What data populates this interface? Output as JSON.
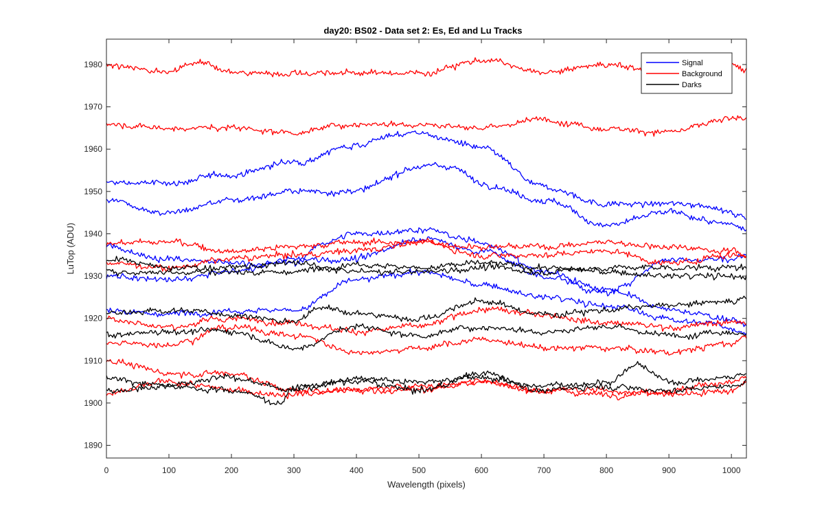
{
  "chart_data": {
    "type": "line",
    "title": "day20: BS02 - Data set 2: Es, Ed and Lu Tracks",
    "xlabel": "Wavelength (pixels)",
    "ylabel": "LuTop (ADU)",
    "xlim": [
      0,
      1024
    ],
    "ylim": [
      1887,
      1986
    ],
    "xticks": [
      0,
      100,
      200,
      300,
      400,
      500,
      600,
      700,
      800,
      900,
      1000
    ],
    "yticks": [
      1890,
      1900,
      1910,
      1920,
      1930,
      1940,
      1950,
      1960,
      1970,
      1980
    ],
    "grid": false,
    "legend": {
      "placement": "top-right",
      "entries": [
        "Signal",
        "Background",
        "Darks"
      ]
    },
    "colors": {
      "Signal": "#0000ff",
      "Background": "#ff0000",
      "Darks": "#000000"
    },
    "series": [
      {
        "name": "Signal",
        "x": [
          0,
          100,
          200,
          300,
          400,
          450,
          500,
          550,
          600,
          700,
          800,
          900,
          950,
          1024
        ],
        "y": [
          1952,
          1952,
          1954,
          1957,
          1961,
          1963,
          1964,
          1962,
          1960,
          1951,
          1947,
          1947,
          1947,
          1944
        ]
      },
      {
        "name": "Signal",
        "x": [
          0,
          100,
          200,
          300,
          400,
          500,
          550,
          600,
          700,
          800,
          900,
          1000,
          1024
        ],
        "y": [
          1948,
          1945,
          1948,
          1950,
          1950,
          1956,
          1956,
          1952,
          1948,
          1942,
          1945,
          1942,
          1941
        ]
      },
      {
        "name": "Signal",
        "x": [
          0,
          100,
          200,
          300,
          350,
          400,
          500,
          600,
          700,
          800,
          900,
          1000,
          1024
        ],
        "y": [
          1937,
          1934,
          1933,
          1933,
          1938,
          1940,
          1941,
          1938,
          1931,
          1927,
          1922,
          1920,
          1918
        ]
      },
      {
        "name": "Signal",
        "x": [
          0,
          100,
          200,
          300,
          400,
          500,
          600,
          700,
          800,
          900,
          1000,
          1024
        ],
        "y": [
          1930,
          1929,
          1931,
          1934,
          1934,
          1939,
          1936,
          1930,
          1926,
          1934,
          1934,
          1935
        ]
      },
      {
        "name": "Signal",
        "x": [
          0,
          100,
          200,
          300,
          400,
          500,
          600,
          700,
          800,
          900,
          950,
          1024
        ],
        "y": [
          1922,
          1921,
          1922,
          1922,
          1929,
          1931,
          1928,
          1925,
          1923,
          1920,
          1919,
          1917
        ]
      },
      {
        "name": "Background",
        "x": [
          0,
          100,
          150,
          200,
          300,
          400,
          500,
          600,
          700,
          800,
          900,
          1000,
          1024
        ],
        "y": [
          1980,
          1978,
          1981,
          1978,
          1978,
          1978,
          1978,
          1981,
          1978,
          1980,
          1978,
          1980,
          1979
        ]
      },
      {
        "name": "Background",
        "x": [
          0,
          100,
          200,
          300,
          400,
          500,
          600,
          700,
          800,
          900,
          1000,
          1024
        ],
        "y": [
          1966,
          1965,
          1965,
          1964,
          1966,
          1966,
          1965,
          1967,
          1965,
          1964,
          1967,
          1967
        ]
      },
      {
        "name": "Background",
        "x": [
          0,
          100,
          200,
          300,
          400,
          500,
          600,
          700,
          800,
          900,
          1000,
          1024
        ],
        "y": [
          1938,
          1938,
          1936,
          1937,
          1938,
          1938,
          1937,
          1937,
          1938,
          1937,
          1936,
          1935
        ]
      },
      {
        "name": "Background",
        "x": [
          0,
          100,
          200,
          300,
          400,
          500,
          600,
          700,
          800,
          900,
          1000,
          1024
        ],
        "y": [
          1933,
          1932,
          1934,
          1935,
          1936,
          1938,
          1935,
          1935,
          1936,
          1933,
          1935,
          1935
        ]
      },
      {
        "name": "Background",
        "x": [
          0,
          100,
          200,
          300,
          400,
          500,
          600,
          700,
          800,
          900,
          1000,
          1024
        ],
        "y": [
          1920,
          1918,
          1920,
          1919,
          1917,
          1918,
          1922,
          1921,
          1919,
          1918,
          1919,
          1919
        ]
      },
      {
        "name": "Background",
        "x": [
          0,
          100,
          200,
          300,
          400,
          500,
          600,
          700,
          800,
          900,
          1000,
          1024
        ],
        "y": [
          1914,
          1914,
          1918,
          1916,
          1912,
          1913,
          1915,
          1913,
          1913,
          1912,
          1914,
          1916
        ]
      },
      {
        "name": "Background",
        "x": [
          0,
          100,
          200,
          300,
          400,
          500,
          600,
          700,
          800,
          900,
          1000,
          1024
        ],
        "y": [
          1910,
          1907,
          1907,
          1903,
          1903,
          1904,
          1905,
          1903,
          1902,
          1903,
          1905,
          1906
        ]
      },
      {
        "name": "Background",
        "x": [
          0,
          100,
          200,
          300,
          400,
          500,
          600,
          700,
          800,
          900,
          1000,
          1024
        ],
        "y": [
          1902,
          1905,
          1903,
          1902,
          1903,
          1903,
          1905,
          1903,
          1903,
          1902,
          1903,
          1905
        ]
      },
      {
        "name": "Darks",
        "x": [
          0,
          100,
          200,
          300,
          400,
          500,
          600,
          700,
          800,
          900,
          1000,
          1024
        ],
        "y": [
          1934,
          1932,
          1932,
          1933,
          1931,
          1931,
          1932,
          1931,
          1932,
          1932,
          1932,
          1932
        ]
      },
      {
        "name": "Darks",
        "x": [
          0,
          100,
          200,
          300,
          400,
          500,
          600,
          700,
          800,
          900,
          1000,
          1024
        ],
        "y": [
          1931,
          1931,
          1931,
          1931,
          1933,
          1932,
          1933,
          1932,
          1931,
          1930,
          1930,
          1930
        ]
      },
      {
        "name": "Darks",
        "x": [
          0,
          100,
          200,
          300,
          350,
          400,
          500,
          600,
          700,
          800,
          900,
          1000,
          1024
        ],
        "y": [
          1921,
          1922,
          1921,
          1919,
          1923,
          1921,
          1920,
          1924,
          1921,
          1922,
          1923,
          1924,
          1925
        ]
      },
      {
        "name": "Darks",
        "x": [
          0,
          100,
          200,
          300,
          400,
          500,
          600,
          700,
          800,
          900,
          1000,
          1024
        ],
        "y": [
          1916,
          1917,
          1917,
          1913,
          1918,
          1916,
          1918,
          1917,
          1918,
          1916,
          1917,
          1916
        ]
      },
      {
        "name": "Darks",
        "x": [
          0,
          100,
          200,
          300,
          400,
          500,
          600,
          700,
          800,
          850,
          900,
          1000,
          1024
        ],
        "y": [
          1906,
          1904,
          1906,
          1903,
          1906,
          1905,
          1906,
          1904,
          1905,
          1909,
          1905,
          1906,
          1907
        ]
      },
      {
        "name": "Darks",
        "x": [
          0,
          100,
          200,
          280,
          300,
          400,
          500,
          600,
          700,
          800,
          900,
          1000,
          1024
        ],
        "y": [
          1903,
          1904,
          1903,
          1900,
          1904,
          1905,
          1903,
          1907,
          1903,
          1904,
          1903,
          1904,
          1905
        ]
      }
    ]
  }
}
